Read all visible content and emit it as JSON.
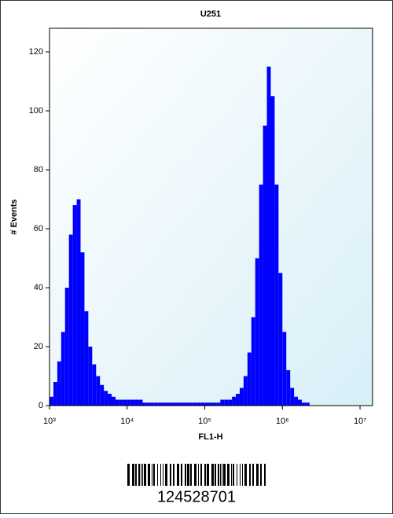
{
  "chart_data": {
    "type": "histogram",
    "title": "U251",
    "x_label": "FL1-H",
    "y_label": "# Events",
    "xscale": "log",
    "color": "#0000ff",
    "bins": [
      1000,
      1122,
      1259,
      1413,
      1585,
      1778,
      1995,
      2239,
      2512,
      2818,
      3162,
      3548,
      3981,
      4467,
      5012,
      5623,
      6310,
      7079,
      7943,
      8913,
      10000,
      11220,
      12590,
      14130,
      15850,
      17780,
      19950,
      22390,
      25120,
      28180,
      31620,
      35480,
      39810,
      44670,
      50120,
      56230,
      63100,
      70790,
      79430,
      89130,
      100000,
      112200,
      125900,
      141300,
      158500,
      177800,
      199500,
      223900,
      251200,
      281800,
      316200,
      354800,
      398100,
      446700,
      501200,
      562300,
      631000,
      707900,
      794300,
      891300,
      1000000,
      1122000,
      1259000,
      1413000,
      1585000,
      1778000,
      1995000,
      2239000,
      2512000,
      2818000,
      3162000,
      3548000,
      3981000,
      4467000,
      5012000,
      5623000,
      6310000,
      7079000,
      7943000,
      8913000,
      10000000
    ],
    "values": [
      3,
      8,
      15,
      25,
      40,
      58,
      68,
      70,
      52,
      32,
      20,
      14,
      10,
      7,
      5,
      4,
      3,
      2,
      2,
      2,
      2,
      2,
      2,
      2,
      1,
      1,
      1,
      1,
      1,
      1,
      1,
      1,
      1,
      1,
      1,
      1,
      1,
      1,
      1,
      1,
      1,
      1,
      1,
      1,
      2,
      2,
      2,
      3,
      4,
      6,
      10,
      18,
      30,
      50,
      75,
      95,
      115,
      105,
      75,
      45,
      25,
      12,
      6,
      3,
      2,
      1,
      1,
      0,
      0,
      0,
      0,
      0,
      0,
      0,
      0,
      0,
      0,
      0,
      0,
      0
    ],
    "xlim": [
      1000,
      14500000
    ],
    "ylim": [
      0,
      128
    ],
    "xticks": [
      {
        "value": 1000,
        "label": "10³"
      },
      {
        "value": 10000,
        "label": "10⁴"
      },
      {
        "value": 100000,
        "label": "10⁵"
      },
      {
        "value": 1000000,
        "label": "10⁶"
      },
      {
        "value": 10000000,
        "label": "10⁷"
      }
    ],
    "yticks": [
      0,
      20,
      40,
      60,
      80,
      100,
      120
    ],
    "barcode": "124528701"
  }
}
